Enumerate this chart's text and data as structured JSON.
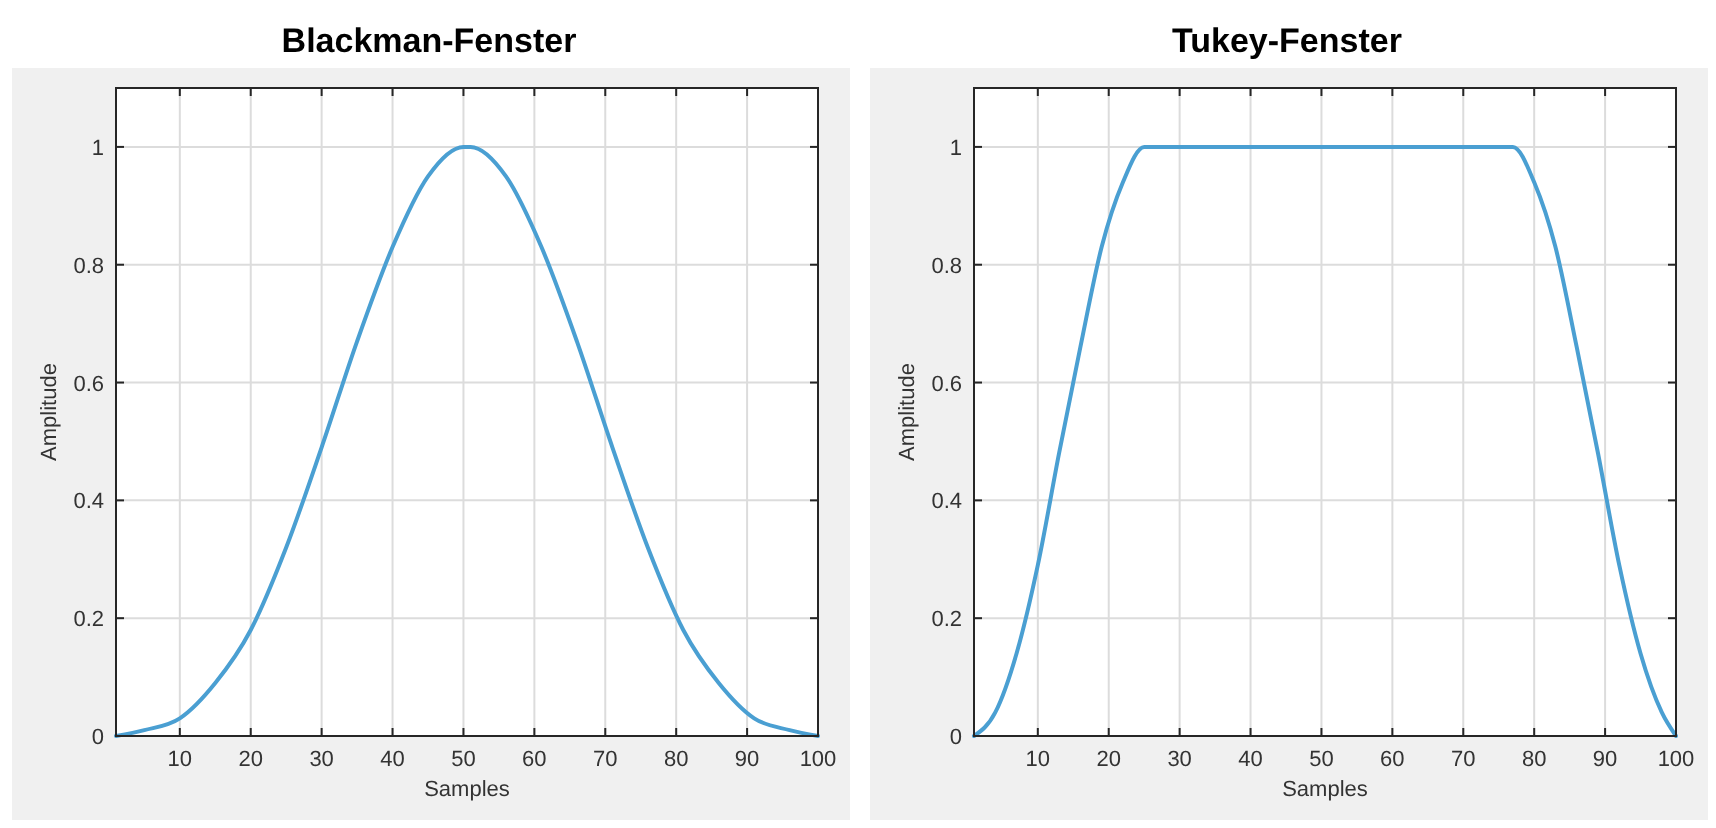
{
  "chart_data": [
    {
      "type": "line",
      "title": "Blackman-Fenster",
      "xlabel": "Samples",
      "ylabel": "Amplitude",
      "xlim": [
        1,
        100
      ],
      "ylim": [
        0,
        1.1
      ],
      "xticks": [
        10,
        20,
        30,
        40,
        50,
        60,
        70,
        80,
        90,
        100
      ],
      "yticks": [
        0,
        0.2,
        0.4,
        0.6,
        0.8,
        1
      ],
      "grid": true,
      "series": [
        {
          "color": "#4a9fd2",
          "x": [
            1,
            5,
            10,
            15,
            20,
            25,
            30,
            35,
            40,
            45,
            50,
            51,
            56,
            61,
            66,
            71,
            76,
            81,
            86,
            91,
            96,
            100
          ],
          "values": [
            0,
            0.01,
            0.03,
            0.09,
            0.18,
            0.32,
            0.49,
            0.67,
            0.83,
            0.95,
            1,
            1,
            0.95,
            0.83,
            0.67,
            0.49,
            0.32,
            0.18,
            0.09,
            0.03,
            0.01,
            0
          ]
        }
      ]
    },
    {
      "type": "line",
      "title": "Tukey-Fenster",
      "xlabel": "Samples",
      "ylabel": "Amplitude",
      "xlim": [
        1,
        100
      ],
      "ylim": [
        0,
        1.1
      ],
      "xticks": [
        10,
        20,
        30,
        40,
        50,
        60,
        70,
        80,
        90,
        100
      ],
      "yticks": [
        0,
        0.2,
        0.4,
        0.6,
        0.8,
        1
      ],
      "grid": true,
      "series": [
        {
          "color": "#4a9fd2",
          "x": [
            1,
            4,
            7,
            10,
            13,
            16,
            19,
            22,
            25,
            26,
            75,
            76,
            77,
            80,
            83,
            86,
            89,
            92,
            95,
            98,
            100
          ],
          "values": [
            0,
            0.04,
            0.14,
            0.29,
            0.48,
            0.66,
            0.83,
            0.94,
            1,
            1,
            1,
            1,
            1,
            0.94,
            0.83,
            0.66,
            0.48,
            0.29,
            0.14,
            0.04,
            0
          ]
        }
      ]
    }
  ]
}
